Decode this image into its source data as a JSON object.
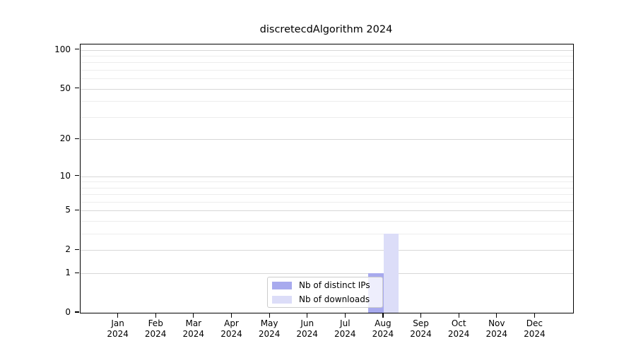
{
  "chart_data": {
    "type": "bar",
    "title": "discretecdAlgorithm 2024",
    "xlabel": "",
    "ylabel": "",
    "categories": [
      "Jan",
      "Feb",
      "Mar",
      "Apr",
      "May",
      "Jun",
      "Jul",
      "Aug",
      "Sep",
      "Oct",
      "Nov",
      "Dec"
    ],
    "category_year": "2024",
    "series": [
      {
        "name": "Nb of distinct IPs",
        "color": "#a8aaee",
        "values": [
          0,
          0,
          0,
          0,
          0,
          0,
          0,
          1,
          0,
          0,
          0,
          0
        ]
      },
      {
        "name": "Nb of downloads",
        "color": "#dcddf8",
        "values": [
          0,
          0,
          0,
          0,
          0,
          0,
          0,
          3,
          0,
          0,
          0,
          0
        ]
      }
    ],
    "y_scale": "log1p",
    "ylim": [
      0,
      110
    ],
    "y_major_ticks": [
      0,
      1,
      2,
      5,
      10,
      20,
      50,
      100
    ],
    "y_minor_ticks": [
      3,
      4,
      6,
      7,
      8,
      9,
      30,
      40,
      60,
      70,
      80,
      90
    ],
    "grid": "horizontal",
    "legend_position": "lower center",
    "colors": {
      "major_grid": "#d7d7d7",
      "minor_grid": "#ededed",
      "axis": "#000000",
      "background": "#ffffff"
    }
  }
}
